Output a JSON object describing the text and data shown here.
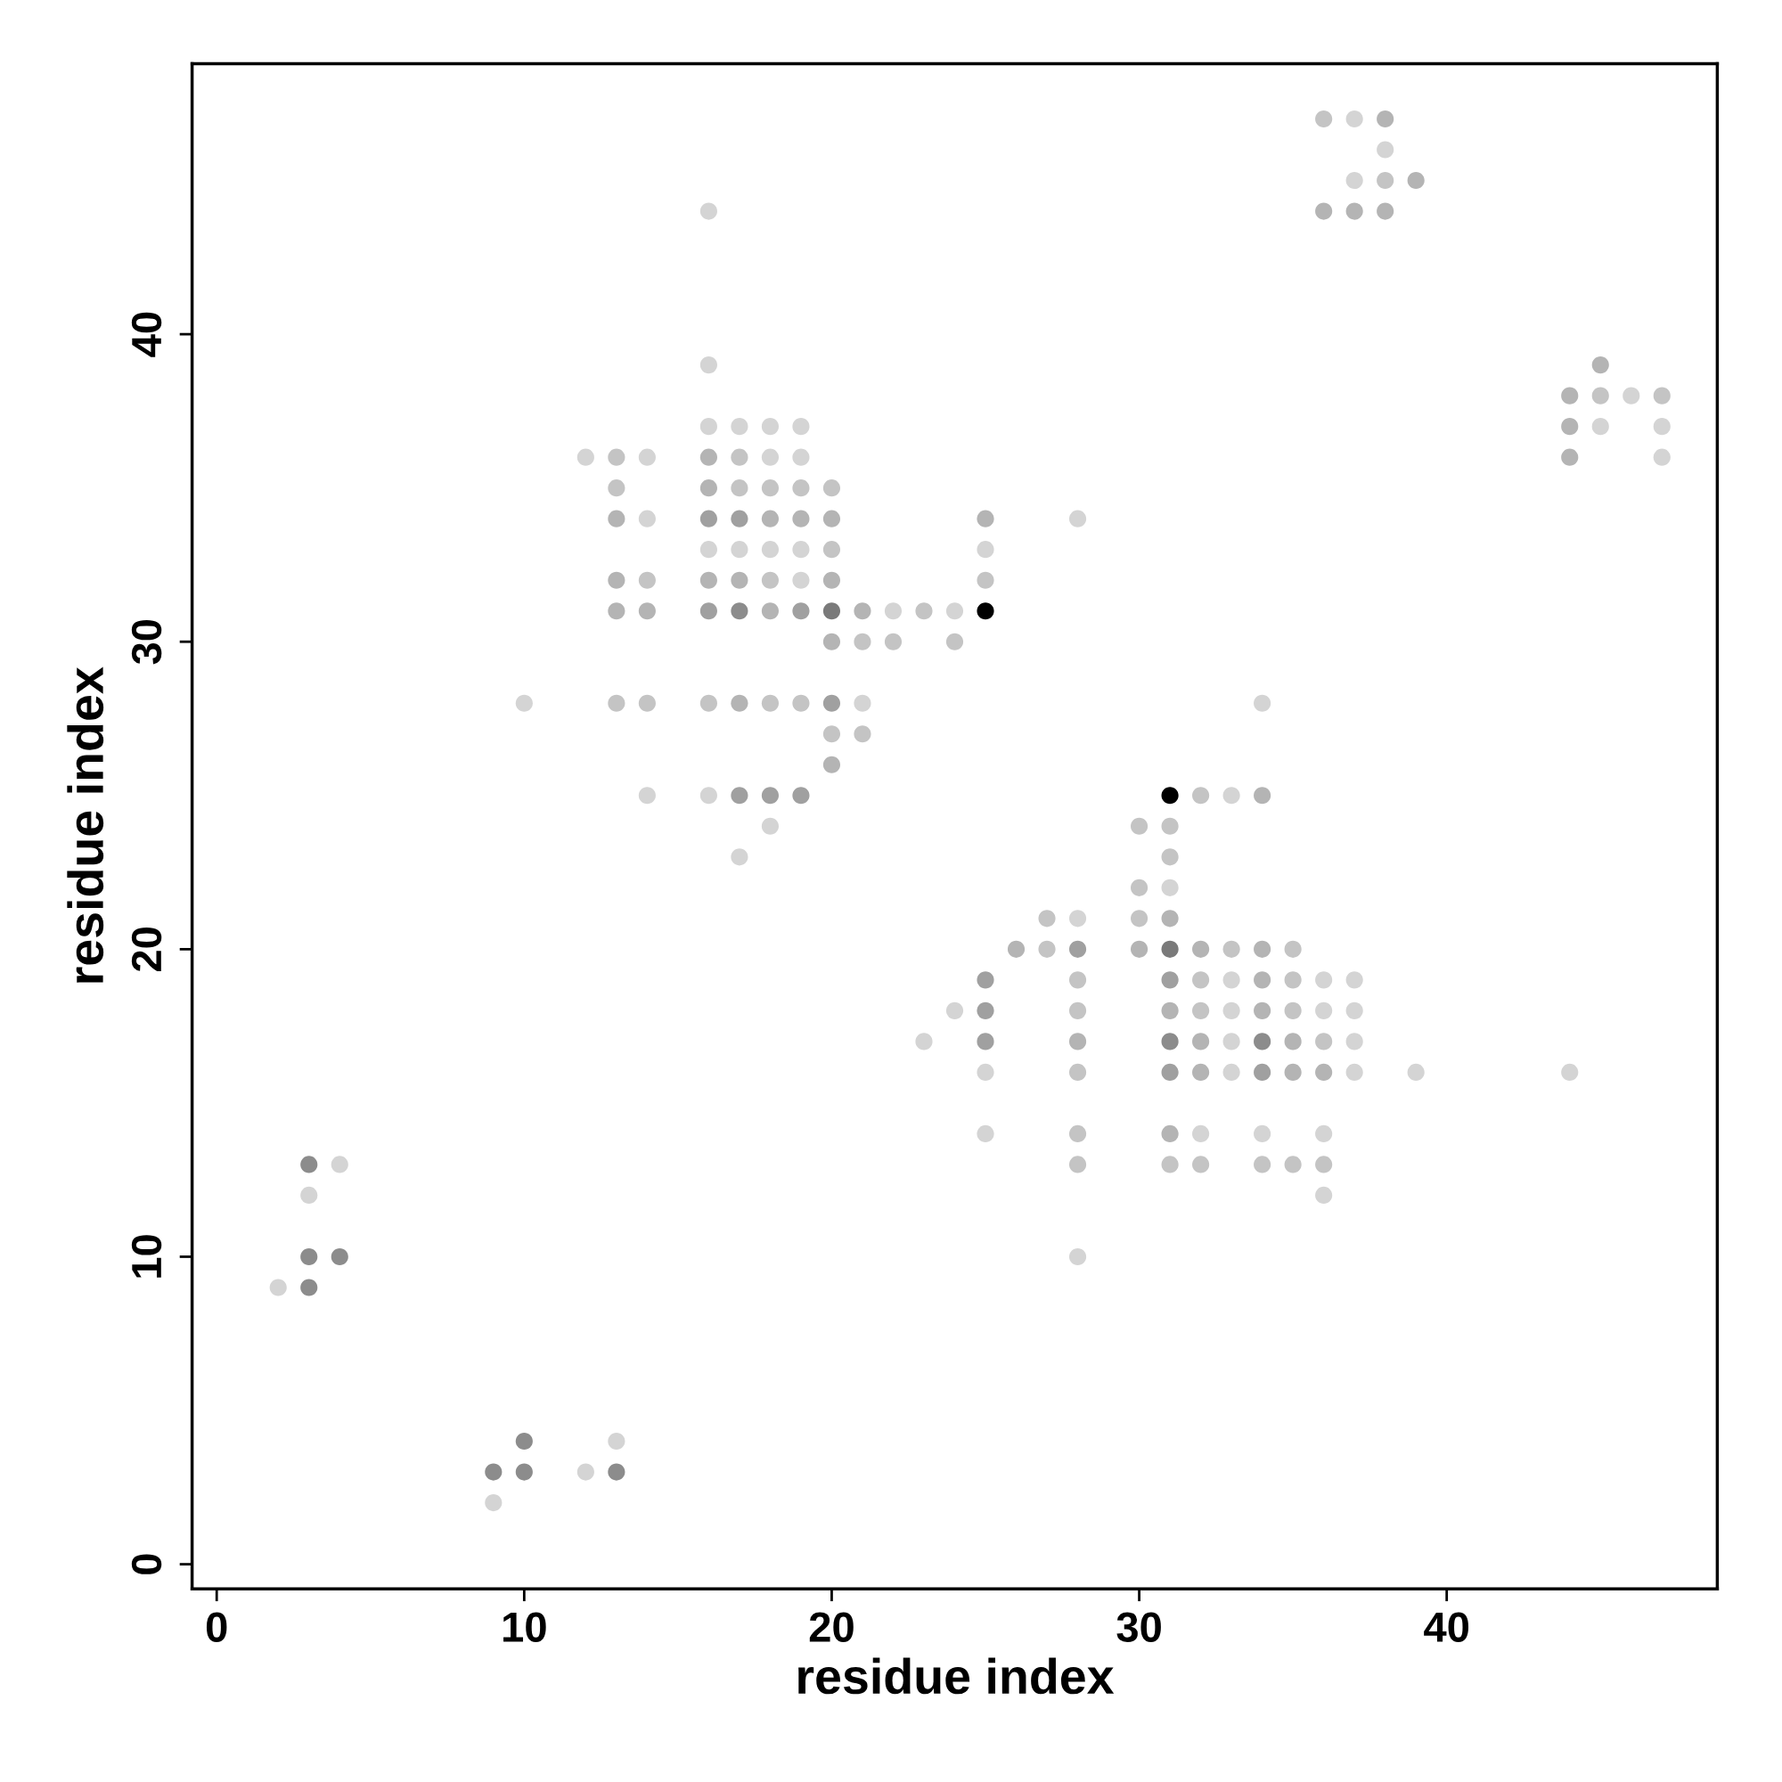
{
  "chart_data": {
    "type": "scatter",
    "xlabel": "residue index",
    "ylabel": "residue index",
    "xlim": [
      -0.8,
      48.8
    ],
    "ylim": [
      -0.8,
      48.8
    ],
    "xticks": [
      0,
      10,
      20,
      30,
      40
    ],
    "yticks": [
      0,
      10,
      20,
      30,
      40
    ],
    "grid": false,
    "marker": "circle",
    "series": [
      {
        "color": "#d4d4d4",
        "x": [
          2,
          3,
          4,
          9,
          12,
          13,
          16,
          16,
          16,
          17,
          18,
          19,
          12,
          14,
          18,
          19,
          14,
          16,
          17,
          18,
          19,
          25,
          19,
          22,
          24,
          10,
          21,
          14,
          16,
          18,
          17,
          28,
          34,
          33,
          31,
          28,
          33,
          36,
          37,
          24,
          33,
          36,
          37,
          23,
          33,
          37,
          25,
          33,
          37,
          39,
          25,
          32,
          34,
          36,
          36,
          28,
          44,
          37,
          38,
          37,
          46,
          45,
          47,
          47
        ],
        "values": [
          9,
          12,
          13,
          2,
          3,
          4,
          44,
          39,
          37,
          37,
          37,
          37,
          36,
          36,
          36,
          36,
          34,
          33,
          33,
          33,
          33,
          33,
          32,
          31,
          31,
          28,
          28,
          25,
          25,
          24,
          23,
          34,
          28,
          25,
          22,
          21,
          19,
          19,
          19,
          18,
          18,
          18,
          18,
          17,
          17,
          17,
          16,
          16,
          16,
          16,
          14,
          14,
          14,
          14,
          12,
          10,
          16,
          47,
          46,
          45,
          38,
          37,
          37,
          36
        ]
      },
      {
        "color": "#c4c4c4",
        "x": [
          13,
          17,
          13,
          17,
          18,
          19,
          20,
          20,
          14,
          18,
          25,
          23,
          21,
          22,
          24,
          13,
          14,
          16,
          18,
          19,
          20,
          21,
          32,
          30,
          31,
          31,
          30,
          27,
          30,
          27,
          33,
          35,
          28,
          32,
          35,
          28,
          32,
          35,
          36,
          28,
          28,
          28,
          31,
          32,
          34,
          35,
          36,
          36,
          38,
          45,
          47
        ],
        "values": [
          36,
          36,
          35,
          35,
          35,
          35,
          35,
          33,
          32,
          32,
          32,
          31,
          30,
          30,
          30,
          28,
          28,
          28,
          28,
          28,
          27,
          27,
          25,
          24,
          24,
          23,
          22,
          21,
          21,
          20,
          20,
          20,
          19,
          19,
          19,
          18,
          18,
          18,
          17,
          16,
          14,
          13,
          13,
          13,
          13,
          13,
          13,
          47,
          45,
          38,
          38
        ]
      },
      {
        "color": "#b4b4b4",
        "x": [
          16,
          16,
          13,
          18,
          19,
          20,
          25,
          13,
          16,
          17,
          20,
          13,
          14,
          18,
          21,
          20,
          17,
          20,
          34,
          31,
          26,
          30,
          32,
          34,
          34,
          31,
          34,
          28,
          32,
          35,
          32,
          35,
          36,
          31,
          38,
          39,
          36,
          37,
          38,
          45,
          44,
          44,
          44
        ],
        "values": [
          36,
          35,
          34,
          34,
          34,
          34,
          34,
          32,
          32,
          32,
          32,
          31,
          31,
          31,
          31,
          30,
          28,
          26,
          25,
          21,
          20,
          20,
          20,
          20,
          19,
          18,
          18,
          17,
          17,
          17,
          16,
          16,
          16,
          14,
          47,
          45,
          44,
          44,
          44,
          39,
          38,
          37,
          36
        ]
      },
      {
        "color": "#a0a0a0",
        "x": [
          16,
          17,
          16,
          19,
          20,
          17,
          18,
          19,
          28,
          25,
          31,
          25,
          25,
          31,
          34
        ],
        "values": [
          34,
          34,
          31,
          31,
          28,
          25,
          25,
          25,
          20,
          19,
          19,
          18,
          17,
          16,
          16
        ]
      },
      {
        "color": "#8c8c8c",
        "x": [
          3,
          3,
          4,
          3,
          9,
          10,
          10,
          13,
          17,
          31,
          34
        ],
        "values": [
          9,
          10,
          10,
          13,
          3,
          3,
          4,
          3,
          31,
          17,
          17
        ]
      },
      {
        "color": "#7a7a7a",
        "x": [
          20,
          31
        ],
        "values": [
          31,
          20
        ]
      },
      {
        "color": "#000000",
        "x": [
          25,
          31
        ],
        "values": [
          31,
          25
        ]
      }
    ]
  }
}
